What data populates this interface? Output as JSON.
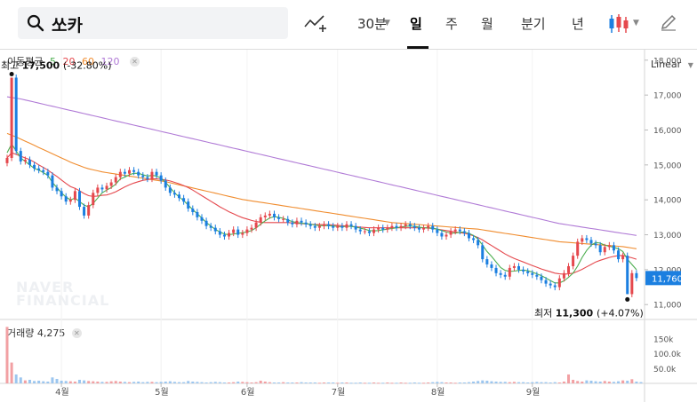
{
  "toolbar": {
    "search_value": "쏘카",
    "interval": "30분",
    "periods": [
      "일",
      "주",
      "월",
      "분기",
      "년"
    ],
    "active_period": "일"
  },
  "icons": {
    "search": "search-icon",
    "draw": "trend-line-icon",
    "chart_type": "candlestick-icon",
    "pen": "pen-icon"
  },
  "colors": {
    "up": "#e5484d",
    "down": "#1b7fe0",
    "ma5": "#4cae4f",
    "ma20": "#e5484d",
    "ma60": "#f08c2e",
    "ma120": "#b07ad6",
    "last_price_bg": "#1b7fe0"
  },
  "watermark": [
    "NAVER",
    "FINANCIAL"
  ],
  "legend": {
    "title": "이동평균",
    "periods": [
      "5",
      "20",
      "60",
      "120"
    ]
  },
  "volume_legend": {
    "label": "거래량",
    "value": "4,275"
  },
  "scale_mode": "Linear",
  "chart_data": {
    "type": "candlestick",
    "title": "",
    "y_ticks": [
      "18,000",
      "17,000",
      "16,000",
      "15,000",
      "14,000",
      "13,000",
      "12,000",
      "11,000"
    ],
    "y_tick_values": [
      18000,
      17000,
      16000,
      15000,
      14000,
      13000,
      12000,
      11000
    ],
    "ylim": [
      10650,
      18300
    ],
    "x_ticks": [
      "4월",
      "5월",
      "6월",
      "7월",
      "8월",
      "9월"
    ],
    "x_tick_index": [
      12,
      34,
      53,
      73,
      95,
      116
    ],
    "last_price": "11,760",
    "high_annotation": {
      "label": "최고",
      "value": "17,500",
      "change": "(-32.80%)",
      "index": 1,
      "price": 17500
    },
    "low_annotation": {
      "label": "최저",
      "value": "11,300",
      "change": "(+4.07%)",
      "index": 137,
      "price": 11300
    },
    "closes": [
      15200,
      17500,
      15400,
      15100,
      15150,
      15000,
      14900,
      14850,
      14800,
      14700,
      14350,
      14250,
      14100,
      13950,
      14000,
      14250,
      13800,
      13550,
      13850,
      14200,
      14350,
      14300,
      14400,
      14500,
      14650,
      14800,
      14750,
      14850,
      14800,
      14700,
      14650,
      14600,
      14800,
      14700,
      14550,
      14350,
      14200,
      14150,
      14050,
      13950,
      13750,
      13650,
      13500,
      13400,
      13250,
      13200,
      13100,
      13000,
      12950,
      13050,
      13150,
      13000,
      13050,
      13150,
      13200,
      13350,
      13500,
      13550,
      13600,
      13500,
      13450,
      13450,
      13350,
      13300,
      13400,
      13350,
      13300,
      13250,
      13200,
      13250,
      13300,
      13250,
      13200,
      13250,
      13200,
      13300,
      13250,
      13150,
      13100,
      13100,
      13050,
      13150,
      13200,
      13150,
      13200,
      13250,
      13200,
      13250,
      13300,
      13250,
      13200,
      13150,
      13200,
      13250,
      13150,
      13050,
      12950,
      13000,
      13100,
      13150,
      13100,
      13050,
      12900,
      12850,
      12700,
      12300,
      12150,
      12050,
      11900,
      11850,
      11800,
      12050,
      12100,
      12000,
      11950,
      11900,
      11850,
      11800,
      11700,
      11600,
      11550,
      11500,
      11750,
      11900,
      12100,
      12400,
      12800,
      12900,
      12850,
      12750,
      12700,
      12500,
      12650,
      12700,
      12550,
      12300,
      12400,
      11300,
      11900,
      11760
    ],
    "ma5": [
      15350,
      15600,
      15400,
      15200,
      15100,
      15000,
      14900,
      14850,
      14780,
      14700,
      14500,
      14350,
      14200,
      14080,
      14000,
      14050,
      13950,
      13850,
      13800,
      13900,
      14050,
      14200,
      14280,
      14350,
      14450,
      14600,
      14650,
      14720,
      14760,
      14760,
      14720,
      14680,
      14700,
      14680,
      14620,
      14500,
      14350,
      14200,
      14080,
      13980,
      13850,
      13720,
      13600,
      13480,
      13350,
      13250,
      13150,
      13080,
      13020,
      13000,
      13020,
      13040,
      13060,
      13080,
      13120,
      13200,
      13300,
      13400,
      13480,
      13520,
      13500,
      13470,
      13420,
      13380,
      13350,
      13330,
      13320,
      13300,
      13280,
      13260,
      13260,
      13260,
      13250,
      13240,
      13230,
      13240,
      13240,
      13220,
      13190,
      13160,
      13120,
      13110,
      13120,
      13140,
      13160,
      13180,
      13200,
      13220,
      13240,
      13250,
      13240,
      13220,
      13200,
      13200,
      13190,
      13160,
      13120,
      13080,
      13050,
      13050,
      13070,
      13080,
      13040,
      12980,
      12880,
      12700,
      12520,
      12380,
      12220,
      12060,
      11980,
      11950,
      11960,
      11980,
      11990,
      11970,
      11930,
      11880,
      11830,
      11760,
      11690,
      11620,
      11620,
      11680,
      11780,
      11900,
      12100,
      12350,
      12550,
      12700,
      12780,
      12760,
      12700,
      12670,
      12640,
      12600,
      12520,
      12300,
      12150,
      12000
    ],
    "ma20": [
      15200,
      15350,
      15300,
      15250,
      15200,
      15150,
      15080,
      15000,
      14930,
      14850,
      14760,
      14670,
      14570,
      14470,
      14380,
      14330,
      14260,
      14180,
      14120,
      14100,
      14110,
      14130,
      14140,
      14180,
      14230,
      14300,
      14370,
      14430,
      14480,
      14520,
      14560,
      14580,
      14600,
      14600,
      14590,
      14570,
      14540,
      14500,
      14460,
      14410,
      14350,
      14280,
      14200,
      14120,
      14040,
      13960,
      13880,
      13800,
      13730,
      13660,
      13600,
      13540,
      13490,
      13450,
      13410,
      13380,
      13360,
      13350,
      13350,
      13350,
      13350,
      13350,
      13350,
      13340,
      13330,
      13320,
      13310,
      13300,
      13290,
      13290,
      13290,
      13290,
      13280,
      13270,
      13260,
      13250,
      13240,
      13230,
      13220,
      13210,
      13200,
      13200,
      13200,
      13200,
      13200,
      13200,
      13200,
      13200,
      13200,
      13200,
      13200,
      13200,
      13200,
      13190,
      13180,
      13160,
      13140,
      13120,
      13100,
      13080,
      13060,
      13040,
      13010,
      12970,
      12920,
      12850,
      12770,
      12690,
      12610,
      12530,
      12450,
      12380,
      12320,
      12270,
      12220,
      12170,
      12120,
      12070,
      12020,
      11980,
      11940,
      11900,
      11880,
      11870,
      11880,
      11900,
      11950,
      12010,
      12080,
      12150,
      12220,
      12270,
      12310,
      12350,
      12380,
      12400,
      12410,
      12370,
      12340,
      12300
    ],
    "ma60": [
      15900,
      15850,
      15800,
      15740,
      15680,
      15620,
      15560,
      15500,
      15440,
      15380,
      15320,
      15260,
      15200,
      15140,
      15080,
      15030,
      14980,
      14930,
      14890,
      14860,
      14830,
      14800,
      14780,
      14760,
      14740,
      14720,
      14700,
      14680,
      14660,
      14640,
      14620,
      14600,
      14580,
      14560,
      14540,
      14520,
      14490,
      14460,
      14430,
      14400,
      14370,
      14340,
      14310,
      14280,
      14250,
      14220,
      14190,
      14160,
      14130,
      14100,
      14070,
      14040,
      14010,
      13990,
      13970,
      13950,
      13930,
      13910,
      13890,
      13870,
      13850,
      13830,
      13810,
      13790,
      13770,
      13750,
      13730,
      13710,
      13690,
      13670,
      13650,
      13630,
      13610,
      13590,
      13570,
      13550,
      13530,
      13510,
      13490,
      13470,
      13450,
      13430,
      13410,
      13390,
      13370,
      13350,
      13340,
      13330,
      13320,
      13310,
      13300,
      13290,
      13280,
      13270,
      13260,
      13250,
      13240,
      13230,
      13220,
      13210,
      13200,
      13190,
      13180,
      13170,
      13160,
      13140,
      13120,
      13100,
      13080,
      13060,
      13040,
      13020,
      13000,
      12980,
      12960,
      12940,
      12920,
      12900,
      12880,
      12860,
      12840,
      12820,
      12800,
      12790,
      12780,
      12770,
      12760,
      12750,
      12740,
      12730,
      12720,
      12710,
      12700,
      12690,
      12680,
      12670,
      12660,
      12640,
      12620,
      12600
    ],
    "ma120": [
      16950,
      16930,
      16910,
      16890,
      16860,
      16830,
      16800,
      16770,
      16740,
      16710,
      16680,
      16650,
      16620,
      16590,
      16560,
      16530,
      16500,
      16470,
      16440,
      16410,
      16380,
      16350,
      16320,
      16290,
      16260,
      16230,
      16200,
      16170,
      16140,
      16110,
      16080,
      16050,
      16020,
      15990,
      15960,
      15930,
      15900,
      15870,
      15840,
      15810,
      15780,
      15750,
      15720,
      15690,
      15660,
      15630,
      15600,
      15570,
      15540,
      15510,
      15480,
      15450,
      15420,
      15390,
      15360,
      15330,
      15300,
      15270,
      15240,
      15210,
      15180,
      15150,
      15120,
      15090,
      15060,
      15030,
      15000,
      14970,
      14940,
      14910,
      14880,
      14850,
      14820,
      14790,
      14760,
      14730,
      14700,
      14670,
      14640,
      14610,
      14580,
      14550,
      14520,
      14490,
      14460,
      14430,
      14400,
      14370,
      14340,
      14310,
      14280,
      14250,
      14220,
      14190,
      14160,
      14130,
      14100,
      14070,
      14040,
      14010,
      13980,
      13950,
      13920,
      13890,
      13860,
      13830,
      13800,
      13770,
      13740,
      13710,
      13680,
      13650,
      13620,
      13590,
      13560,
      13530,
      13500,
      13470,
      13440,
      13410,
      13380,
      13350,
      13320,
      13300,
      13280,
      13260,
      13240,
      13220,
      13200,
      13180,
      13160,
      13140,
      13120,
      13100,
      13080,
      13060,
      13040,
      13020,
      13000,
      12980
    ],
    "volume_ticks": [
      "150k",
      "100.0k",
      "50.0k"
    ],
    "volume_tick_values": [
      150000,
      100000,
      50000
    ],
    "volume_max": 215000,
    "volumes": [
      190000,
      70000,
      30000,
      20000,
      10000,
      12000,
      8000,
      9000,
      7000,
      6000,
      20000,
      15000,
      9000,
      8000,
      7000,
      6000,
      12000,
      10000,
      8000,
      7000,
      6000,
      5000,
      5000,
      7000,
      8000,
      6000,
      5000,
      4000,
      5000,
      6000,
      4000,
      5000,
      5000,
      4000,
      5000,
      6000,
      7000,
      5000,
      4000,
      4000,
      8000,
      6000,
      5000,
      4000,
      3000,
      4000,
      5000,
      4000,
      3000,
      3000,
      4000,
      6000,
      5000,
      4000,
      3000,
      4000,
      9000,
      6000,
      4000,
      3000,
      3000,
      4000,
      3000,
      3000,
      3000,
      4000,
      3000,
      3000,
      3000,
      2000,
      3000,
      3000,
      3000,
      2000,
      3000,
      3000,
      2000,
      2000,
      3000,
      2000,
      2000,
      3000,
      2000,
      2000,
      3000,
      2000,
      2000,
      3000,
      2000,
      2000,
      3000,
      2000,
      2000,
      3000,
      4000,
      5000,
      4000,
      3000,
      3000,
      2000,
      3000,
      3000,
      4000,
      6000,
      8000,
      10000,
      9000,
      7000,
      6000,
      5000,
      5000,
      4000,
      5000,
      4000,
      4000,
      3000,
      4000,
      5000,
      4000,
      4000,
      3000,
      4000,
      3000,
      6000,
      30000,
      12000,
      8000,
      6000,
      10000,
      9000,
      7000,
      6000,
      8000,
      6000,
      5000,
      7000,
      10000,
      9000,
      14000,
      6000,
      4275
    ]
  }
}
